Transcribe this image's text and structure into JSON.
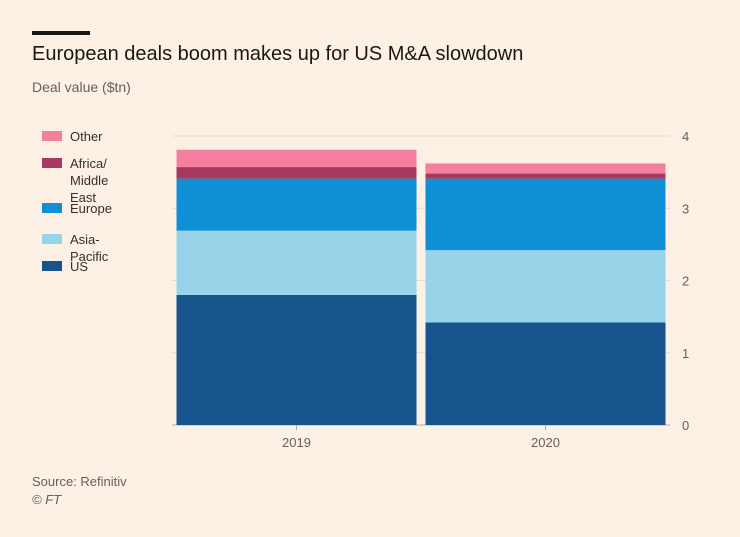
{
  "header": {
    "title": "European deals boom makes up for US M&A slowdown",
    "subtitle": "Deal value ($tn)"
  },
  "footer": {
    "source": "Source: Refinitiv",
    "credit": "© FT"
  },
  "legend": [
    {
      "label": "Other",
      "color": "#f57f9f"
    },
    {
      "label": "Africa/\nMiddle East",
      "color": "#a8385f"
    },
    {
      "label": "Europe",
      "color": "#0f8fd6"
    },
    {
      "label": "Asia-Pacific",
      "color": "#97d3e9"
    },
    {
      "label": "US",
      "color": "#17538c"
    }
  ],
  "chart_data": {
    "type": "bar",
    "stacked": true,
    "categories": [
      "2019",
      "2020"
    ],
    "series": [
      {
        "name": "US",
        "color": "#17538c",
        "values": [
          1.8,
          1.42
        ]
      },
      {
        "name": "Asia-Pacific",
        "color": "#97d3e9",
        "values": [
          0.89,
          1.0
        ]
      },
      {
        "name": "Europe",
        "color": "#0f8fd6",
        "values": [
          0.72,
          0.99
        ]
      },
      {
        "name": "Africa/Middle East",
        "color": "#a8385f",
        "values": [
          0.16,
          0.07
        ]
      },
      {
        "name": "Other",
        "color": "#f57f9f",
        "values": [
          0.24,
          0.14
        ]
      }
    ],
    "ylim": [
      0,
      4
    ],
    "yticks": [
      0,
      1,
      2,
      3,
      4
    ],
    "ytick_labels": [
      "0",
      "1",
      "2",
      "3",
      "4"
    ],
    "y_axis_side": "right",
    "grid": true,
    "legend_position": "left"
  }
}
